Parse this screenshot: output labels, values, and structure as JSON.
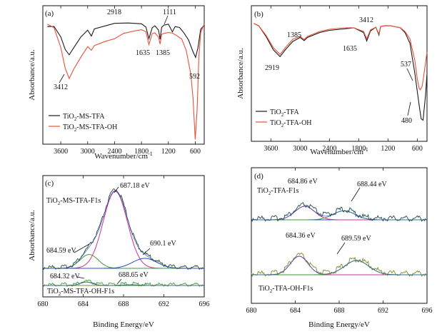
{
  "colors": {
    "black": "#1a1a1a",
    "red": "#e8503a",
    "green": "#3a9b3a",
    "blue": "#2a4fbf",
    "magenta": "#d0309a",
    "cyan": "#2aa0a0",
    "olive": "#7a8a2a"
  },
  "chart_data": [
    {
      "panel": "(a)",
      "type": "line",
      "xlabel": "Wavenumber/cm",
      "xlabel_sup": "-1",
      "ylabel": "Absorbance/a.u.",
      "xlim": [
        4000,
        400
      ],
      "xticks": [
        "3600",
        "3000",
        "2400",
        "1800",
        "1200",
        "600"
      ],
      "legend": {
        "placement": "bottom-left",
        "entries": [
          {
            "pre": "TiO",
            "sub": "2",
            "post": "-MS-TFA"
          },
          {
            "pre": "TiO",
            "sub": "2",
            "post": "-MS-TFA-OH"
          }
        ]
      },
      "annotations": [
        "3412",
        "2918",
        "1635",
        "1385",
        "1111",
        "592"
      ],
      "series": [
        {
          "color": "black",
          "x": [
            3900,
            3750,
            3600,
            3500,
            3412,
            3300,
            3150,
            3000,
            2918,
            2850,
            2400,
            2100,
            1800,
            1700,
            1635,
            1560,
            1500,
            1420,
            1385,
            1350,
            1300,
            1200,
            1111,
            1050,
            950,
            850,
            750,
            650,
            592,
            540,
            480,
            400
          ],
          "y": [
            0.96,
            0.96,
            0.87,
            0.76,
            0.72,
            0.78,
            0.87,
            0.93,
            0.88,
            0.94,
            0.98,
            0.99,
            0.98,
            0.95,
            0.85,
            0.95,
            0.96,
            0.93,
            0.85,
            0.95,
            0.97,
            0.98,
            0.91,
            0.96,
            0.95,
            0.9,
            0.84,
            0.74,
            0.7,
            0.78,
            0.93,
            0.97
          ]
        },
        {
          "color": "red",
          "x": [
            3900,
            3750,
            3600,
            3500,
            3412,
            3300,
            3150,
            3000,
            2918,
            2850,
            2600,
            2400,
            2200,
            2000,
            1800,
            1700,
            1635,
            1560,
            1500,
            1420,
            1385,
            1350,
            1300,
            1200,
            1111,
            1000,
            900,
            800,
            700,
            650,
            600,
            560,
            520,
            480,
            400
          ],
          "y": [
            0.98,
            0.95,
            0.78,
            0.6,
            0.52,
            0.6,
            0.7,
            0.79,
            0.76,
            0.8,
            0.83,
            0.85,
            0.9,
            0.92,
            0.93,
            0.91,
            0.8,
            0.9,
            0.9,
            0.87,
            0.81,
            0.89,
            0.9,
            0.91,
            0.9,
            0.88,
            0.85,
            0.75,
            0.55,
            0.35,
            0.0,
            0.25,
            0.7,
            0.9,
            0.98
          ]
        }
      ]
    },
    {
      "panel": "(b)",
      "type": "line",
      "xlabel": "Wavenumber/cm",
      "xlabel_sup": "-1",
      "ylabel": "Absorbance/a.u.",
      "xlim": [
        4000,
        400
      ],
      "xticks": [
        "3600",
        "3000",
        "2400",
        "1800",
        "1200",
        "600"
      ],
      "legend": {
        "placement": "bottom-left",
        "entries": [
          {
            "pre": "TiO",
            "sub": "2",
            "post": "-TFA"
          },
          {
            "pre": "TiO",
            "sub": "2",
            "post": "-TFA-OH"
          }
        ]
      },
      "annotations": [
        "2919",
        "1385",
        "3412",
        "1635",
        "537",
        "480"
      ],
      "series": [
        {
          "color": "black",
          "x": [
            3950,
            3850,
            3700,
            3550,
            3412,
            3300,
            3150,
            3000,
            2919,
            2850,
            2600,
            2400,
            2100,
            1900,
            1700,
            1635,
            1560,
            1450,
            1385,
            1350,
            1250,
            1150,
            1050,
            950,
            850,
            750,
            650,
            560,
            520,
            480,
            430,
            400
          ],
          "y": [
            0.97,
            0.95,
            0.85,
            0.72,
            0.66,
            0.72,
            0.8,
            0.84,
            0.81,
            0.84,
            0.88,
            0.9,
            0.92,
            0.93,
            0.88,
            0.8,
            0.9,
            0.93,
            0.86,
            0.94,
            0.95,
            0.95,
            0.94,
            0.93,
            0.88,
            0.78,
            0.5,
            0.2,
            0.08,
            0.06,
            0.3,
            0.5
          ]
        },
        {
          "color": "red",
          "x": [
            3950,
            3850,
            3700,
            3550,
            3412,
            3300,
            3150,
            3000,
            2919,
            2850,
            2600,
            2400,
            2100,
            1900,
            1700,
            1635,
            1560,
            1450,
            1385,
            1350,
            1250,
            1150,
            1050,
            950,
            850,
            750,
            650,
            600,
            560,
            537,
            500,
            460,
            400
          ],
          "y": [
            0.97,
            0.95,
            0.86,
            0.74,
            0.68,
            0.74,
            0.82,
            0.85,
            0.82,
            0.85,
            0.89,
            0.91,
            0.93,
            0.93,
            0.89,
            0.82,
            0.91,
            0.93,
            0.87,
            0.94,
            0.95,
            0.95,
            0.94,
            0.93,
            0.89,
            0.82,
            0.62,
            0.45,
            0.36,
            0.35,
            0.38,
            0.5,
            0.7
          ]
        }
      ]
    },
    {
      "panel": "(c)",
      "type": "line",
      "xlabel": "Binding Energy/eV",
      "ylabel": "Absorbance/a.u.",
      "xlim": [
        680,
        696
      ],
      "xticks": [
        "680",
        "684",
        "688",
        "692",
        "696"
      ],
      "labels": {
        "upper_pre": "TiO",
        "upper_sub": "2",
        "upper_post": "-MS-TFA-F1s",
        "lower_pre": "TiO",
        "lower_sub": "2",
        "lower_post": "-MS-TFA-OH-F1s"
      },
      "annotations": [
        "687.18 eV",
        "684.59 eV",
        "690.1 eV",
        "684.32 eV",
        "688.65 eV"
      ],
      "peaks": [
        {
          "component": "upper",
          "color": "magenta",
          "center": 687.18,
          "height": 1.0,
          "sigma": 1.2
        },
        {
          "component": "upper",
          "color": "green",
          "center": 684.59,
          "height": 0.18,
          "sigma": 0.9
        },
        {
          "component": "upper",
          "color": "blue",
          "center": 690.1,
          "height": 0.13,
          "sigma": 1.2
        },
        {
          "component": "lower",
          "color": "green",
          "center": 684.32,
          "height": 0.08,
          "sigma": 0.6
        },
        {
          "component": "lower",
          "color": "olive",
          "center": 688.65,
          "height": 0.015,
          "sigma": 0.8
        }
      ]
    },
    {
      "panel": "(d)",
      "type": "line",
      "xlabel": "Binding Energy/eV",
      "ylabel": "",
      "xlim": [
        680,
        696
      ],
      "xticks": [
        "680",
        "684",
        "688",
        "692",
        "696"
      ],
      "labels": {
        "upper_pre": "TiO",
        "upper_sub": "2",
        "upper_post": "-TFA-F1s",
        "lower_pre": "TiO",
        "lower_sub": "2",
        "lower_post": "-TFA-OH-F1s"
      },
      "annotations": [
        "684.86 eV",
        "688.44 eV",
        "684.36 eV",
        "689.59 eV"
      ],
      "peaks": [
        {
          "component": "upper",
          "color": "magenta",
          "center": 684.86,
          "height": 0.45,
          "sigma": 0.9
        },
        {
          "component": "upper",
          "color": "green",
          "center": 688.44,
          "height": 0.3,
          "sigma": 1.0
        },
        {
          "component": "lower",
          "color": "magenta",
          "center": 684.36,
          "height": 0.65,
          "sigma": 0.8
        },
        {
          "component": "lower",
          "color": "green",
          "center": 689.59,
          "height": 0.5,
          "sigma": 1.1
        }
      ]
    }
  ]
}
